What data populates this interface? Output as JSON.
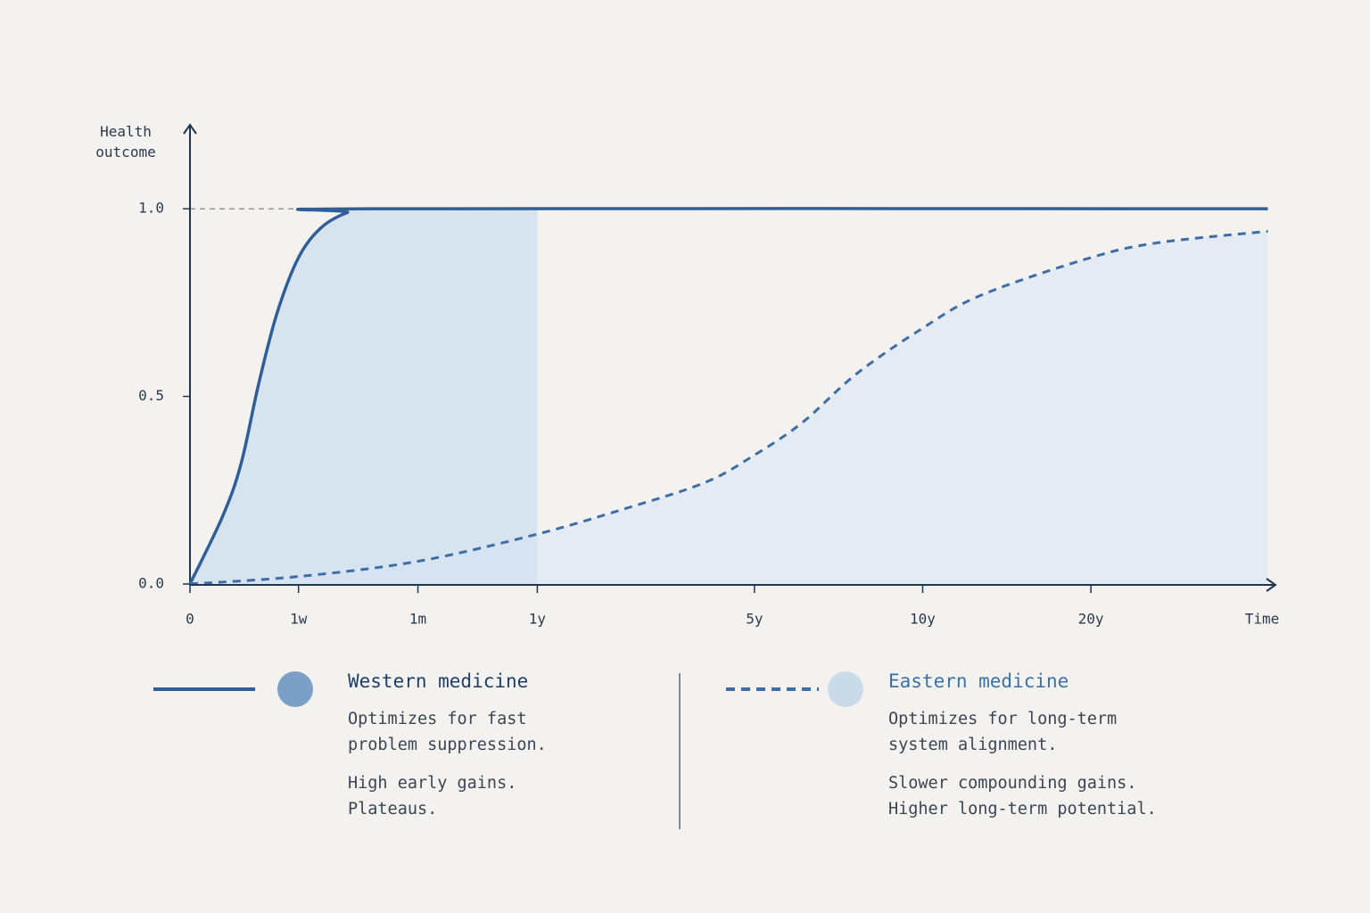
{
  "chart_data": {
    "type": "line",
    "ylabel": "Health outcome",
    "xlabel": "Time",
    "xlim": [
      0,
      10
    ],
    "ylim": [
      0,
      1.2
    ],
    "xticks": [
      {
        "value": 0,
        "label": "0"
      },
      {
        "value": 1.0,
        "label": "1w"
      },
      {
        "value": 2.1,
        "label": "1m"
      },
      {
        "value": 3.2,
        "label": "1y"
      },
      {
        "value": 5.2,
        "label": "5y"
      },
      {
        "value": 6.75,
        "label": "10y"
      },
      {
        "value": 8.3,
        "label": "20y"
      }
    ],
    "yticks": [
      {
        "value": 0,
        "label": "0.0"
      },
      {
        "value": 0.5,
        "label": "0.5"
      },
      {
        "value": 1,
        "label": "1.0"
      }
    ],
    "series": [
      {
        "name": "Western medicine",
        "color": "#2f5f98",
        "marker_color": "#7ba0c8",
        "dashed": false,
        "x": [
          0,
          0.3,
          0.47,
          0.63,
          0.8,
          1.0,
          1.21,
          1.45,
          1.66,
          9.93
        ],
        "values": [
          0,
          0.18,
          0.32,
          0.53,
          0.72,
          0.87,
          0.95,
          0.99,
          1.0,
          1.0
        ],
        "description": [
          "Optimizes for fast problem suppression.",
          "High early gains. Plateaus."
        ]
      },
      {
        "name": "Eastern medicine",
        "color": "#3d6ea8",
        "marker_color": "#c9dbe9",
        "dashed": true,
        "x": [
          0,
          1.0,
          2.09,
          3.16,
          4.0,
          4.74,
          5.18,
          5.64,
          6.14,
          6.74,
          7.29,
          8.3,
          8.93,
          9.93
        ],
        "values": [
          0,
          0.02,
          0.06,
          0.13,
          0.2,
          0.27,
          0.34,
          0.43,
          0.56,
          0.68,
          0.77,
          0.87,
          0.91,
          0.94
        ],
        "description": [
          "Optimizes for long-term system alignment.",
          "Slower compounding gains. Higher long-term potential."
        ]
      }
    ]
  }
}
